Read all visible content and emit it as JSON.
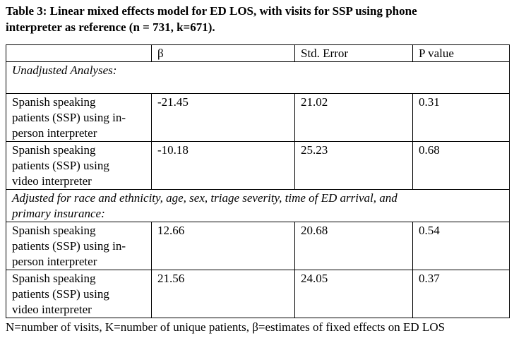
{
  "caption": {
    "line1": "Table 3: Linear mixed effects model for ED LOS, with visits for SSP using phone",
    "line2": "interpreter as reference (n = 731, k=671)."
  },
  "table": {
    "headers": [
      "",
      "β",
      "Std. Error",
      "P value"
    ],
    "sections": [
      {
        "title": "Unadjusted Analyses:",
        "rows": [
          {
            "label_lines": [
              "Spanish speaking",
              "patients (SSP) using in-",
              "person interpreter"
            ],
            "beta": "-21.45",
            "std_error": "21.02",
            "p_value": "0.31"
          },
          {
            "label_lines": [
              "Spanish speaking",
              "patients (SSP) using",
              "video interpreter"
            ],
            "beta": "-10.18",
            "std_error": "25.23",
            "p_value": "0.68"
          }
        ]
      },
      {
        "title_lines": [
          "Adjusted for race and ethnicity, age, sex, triage severity, time of ED arrival, and",
          "primary insurance:"
        ],
        "rows": [
          {
            "label_lines": [
              "Spanish speaking",
              "patients (SSP) using in-",
              "person interpreter"
            ],
            "beta": "12.66",
            "std_error": "20.68",
            "p_value": "0.54"
          },
          {
            "label_lines": [
              "Spanish speaking",
              "patients (SSP) using",
              "video interpreter"
            ],
            "beta": "21.56",
            "std_error": "24.05",
            "p_value": "0.37"
          }
        ]
      }
    ]
  },
  "footnote": "N=number of visits, K=number of unique patients, β=estimates of fixed effects on ED LOS"
}
